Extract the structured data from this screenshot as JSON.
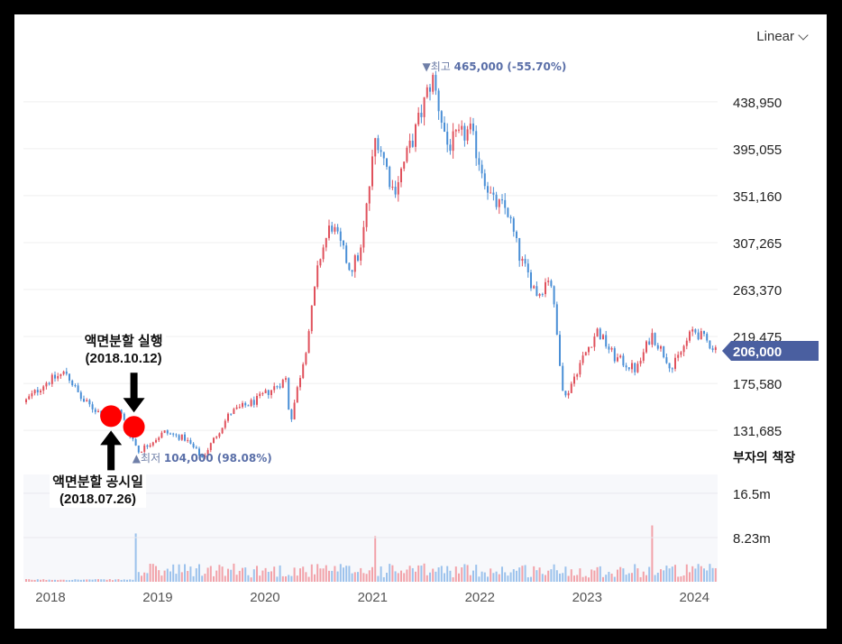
{
  "scale_selector": {
    "label": "Linear"
  },
  "chart_data": {
    "type": "candlestick",
    "x_range": [
      "2017-10-01",
      "2024-03-20"
    ],
    "ylim": [
      104000,
      470000
    ],
    "y_ticks": [
      131685,
      175580,
      219475,
      263370,
      307265,
      351160,
      395055,
      438950
    ],
    "y_tick_labels": [
      "131,685",
      "175,580",
      "219,475",
      "263,370",
      "307,265",
      "351,160",
      "395,055",
      "438,950"
    ],
    "x_ticks": [
      "2018-01-01",
      "2019-01-01",
      "2020-01-01",
      "2021-01-01",
      "2022-01-01",
      "2023-01-01",
      "2024-01-01"
    ],
    "x_tick_labels": [
      "2018",
      "2019",
      "2020",
      "2021",
      "2022",
      "2023",
      "2024"
    ],
    "up_color": "#e0515c",
    "down_color": "#4a8fd6",
    "price_path": [
      [
        "2017-10-01",
        158000
      ],
      [
        "2017-12-10",
        176000
      ],
      [
        "2018-02-20",
        186000
      ],
      [
        "2018-04-15",
        160000
      ],
      [
        "2018-07-01",
        145000
      ],
      [
        "2018-08-20",
        150000
      ],
      [
        "2018-10-25",
        112000
      ],
      [
        "2019-01-20",
        130000
      ],
      [
        "2019-04-01",
        124000
      ],
      [
        "2019-05-30",
        106000
      ],
      [
        "2019-09-01",
        148000
      ],
      [
        "2019-12-01",
        160000
      ],
      [
        "2020-03-10",
        180000
      ],
      [
        "2020-03-23",
        138000
      ],
      [
        "2020-05-20",
        214000
      ],
      [
        "2020-07-01",
        292000
      ],
      [
        "2020-08-10",
        325000
      ],
      [
        "2020-10-15",
        282000
      ],
      [
        "2020-11-20",
        300000
      ],
      [
        "2021-01-10",
        410000
      ],
      [
        "2021-03-10",
        355000
      ],
      [
        "2021-05-20",
        408000
      ],
      [
        "2021-07-20",
        462000
      ],
      [
        "2021-09-10",
        398000
      ],
      [
        "2021-11-25",
        412000
      ],
      [
        "2022-02-10",
        345000
      ],
      [
        "2022-04-01",
        338000
      ],
      [
        "2022-05-15",
        292000
      ],
      [
        "2022-07-15",
        258000
      ],
      [
        "2022-08-25",
        278000
      ],
      [
        "2022-10-12",
        160000
      ],
      [
        "2022-12-01",
        192000
      ],
      [
        "2023-02-01",
        225000
      ],
      [
        "2023-04-01",
        200000
      ],
      [
        "2023-06-15",
        188000
      ],
      [
        "2023-08-05",
        222000
      ],
      [
        "2023-10-15",
        190000
      ],
      [
        "2023-12-25",
        226000
      ],
      [
        "2024-03-01",
        210000
      ],
      [
        "2024-03-20",
        206000
      ]
    ],
    "current_price": {
      "value": 206000,
      "label": "206,000",
      "color": "#4a5fa0"
    },
    "high_marker": {
      "date": "2021-07-20",
      "value": 465000,
      "prefix": "▼최고",
      "label": "465,000 (-55.70%)"
    },
    "low_marker": {
      "date": "2018-10-25",
      "value": 104000,
      "prefix": "▲최저",
      "label": "104,000 (98.08%)"
    },
    "volume": {
      "label": "부자의 책장",
      "y_tick_labels": [
        "16.5m",
        "8.23m"
      ],
      "y_tick_values": [
        16500000,
        8230000
      ],
      "ylim": [
        0,
        20000000
      ]
    },
    "annotations": [
      {
        "event_date": "2018-07-26",
        "price": 145000,
        "direction": "up",
        "line1": "액면분할 공시일",
        "line2": "(2018.07.26)"
      },
      {
        "event_date": "2018-10-12",
        "price": 135000,
        "direction": "down",
        "line1": "액면분할 실행",
        "line2": "(2018.10.12)"
      }
    ]
  }
}
